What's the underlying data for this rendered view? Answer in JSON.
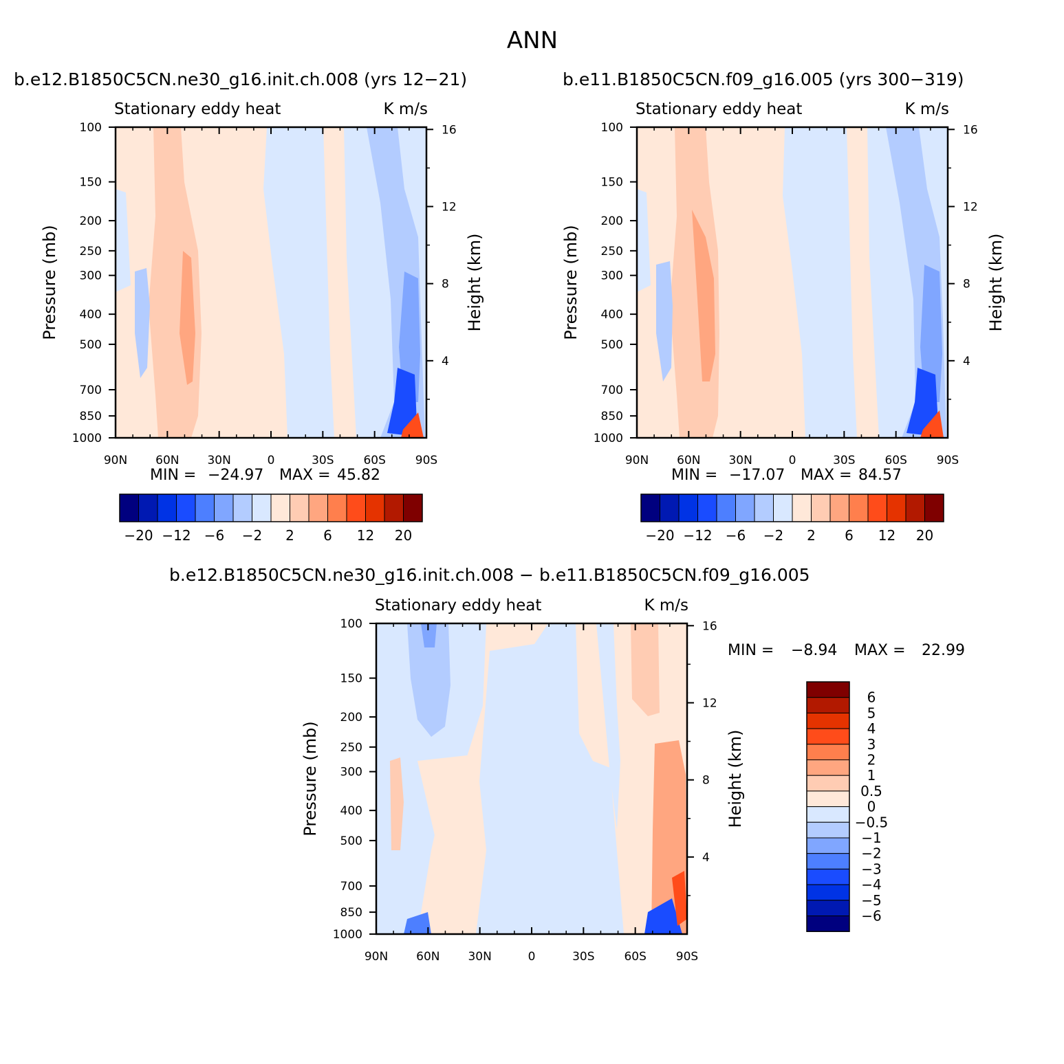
{
  "figure": {
    "title": "ANN"
  },
  "chart_data": [
    {
      "type": "heatmap",
      "title": "b.e12.B1850C5CN.ne30_g16.init.ch.008 (yrs 12−21)",
      "subtitle_left": "Stationary eddy heat",
      "subtitle_right": "K m/s",
      "ylabel": "Pressure (mb)",
      "y2label": "Height (km)",
      "x_ticks": [
        "90N",
        "60N",
        "30N",
        "0",
        "30S",
        "60S",
        "90S"
      ],
      "y_ticks": [
        "100",
        "150",
        "200",
        "250",
        "300",
        "400",
        "500",
        "700",
        "850",
        "1000"
      ],
      "y2_ticks": [
        "16",
        "12",
        "8",
        "4"
      ],
      "min_label": "MIN =",
      "min_value": "−24.97",
      "max_label": "MAX =",
      "max_value": "45.82",
      "colorbar_labels": [
        "−20",
        "−12",
        "−6",
        "−2",
        "2",
        "6",
        "12",
        "20"
      ]
    },
    {
      "type": "heatmap",
      "title": "b.e11.B1850C5CN.f09_g16.005 (yrs 300−319)",
      "subtitle_left": "Stationary eddy heat",
      "subtitle_right": "K m/s",
      "ylabel": "Pressure (mb)",
      "y2label": "Height (km)",
      "x_ticks": [
        "90N",
        "60N",
        "30N",
        "0",
        "30S",
        "60S",
        "90S"
      ],
      "y_ticks": [
        "100",
        "150",
        "200",
        "250",
        "300",
        "400",
        "500",
        "700",
        "850",
        "1000"
      ],
      "y2_ticks": [
        "16",
        "12",
        "8",
        "4"
      ],
      "min_label": "MIN =",
      "min_value": "−17.07",
      "max_label": "MAX =",
      "max_value": "84.57",
      "colorbar_labels": [
        "−20",
        "−12",
        "−6",
        "−2",
        "2",
        "6",
        "12",
        "20"
      ]
    },
    {
      "type": "heatmap",
      "title": "b.e12.B1850C5CN.ne30_g16.init.ch.008 − b.e11.B1850C5CN.f09_g16.005",
      "subtitle_left": "Stationary eddy heat",
      "subtitle_right": "K m/s",
      "ylabel": "Pressure (mb)",
      "y2label": "Height (km)",
      "x_ticks": [
        "90N",
        "60N",
        "30N",
        "0",
        "30S",
        "60S",
        "90S"
      ],
      "y_ticks": [
        "100",
        "150",
        "200",
        "250",
        "300",
        "400",
        "500",
        "700",
        "850",
        "1000"
      ],
      "y2_ticks": [
        "16",
        "12",
        "8",
        "4"
      ],
      "min_label": "MIN =",
      "min_value": "−8.94",
      "max_label": "MAX =",
      "max_value": "22.99",
      "colorbar_labels": [
        "6",
        "5",
        "4",
        "3",
        "2",
        "1",
        "0.5",
        "0",
        "−0.5",
        "−1",
        "−2",
        "−3",
        "−4",
        "−5",
        "−6"
      ]
    }
  ],
  "palette": [
    "#00007f",
    "#0019b2",
    "#0033e5",
    "#1a4cff",
    "#4d7fff",
    "#80a6ff",
    "#b3ccff",
    "#d9e8ff",
    "#ffe8d9",
    "#ffccb3",
    "#ffa680",
    "#ff7f4d",
    "#ff4c1a",
    "#e53300",
    "#b21900",
    "#7f0000"
  ]
}
